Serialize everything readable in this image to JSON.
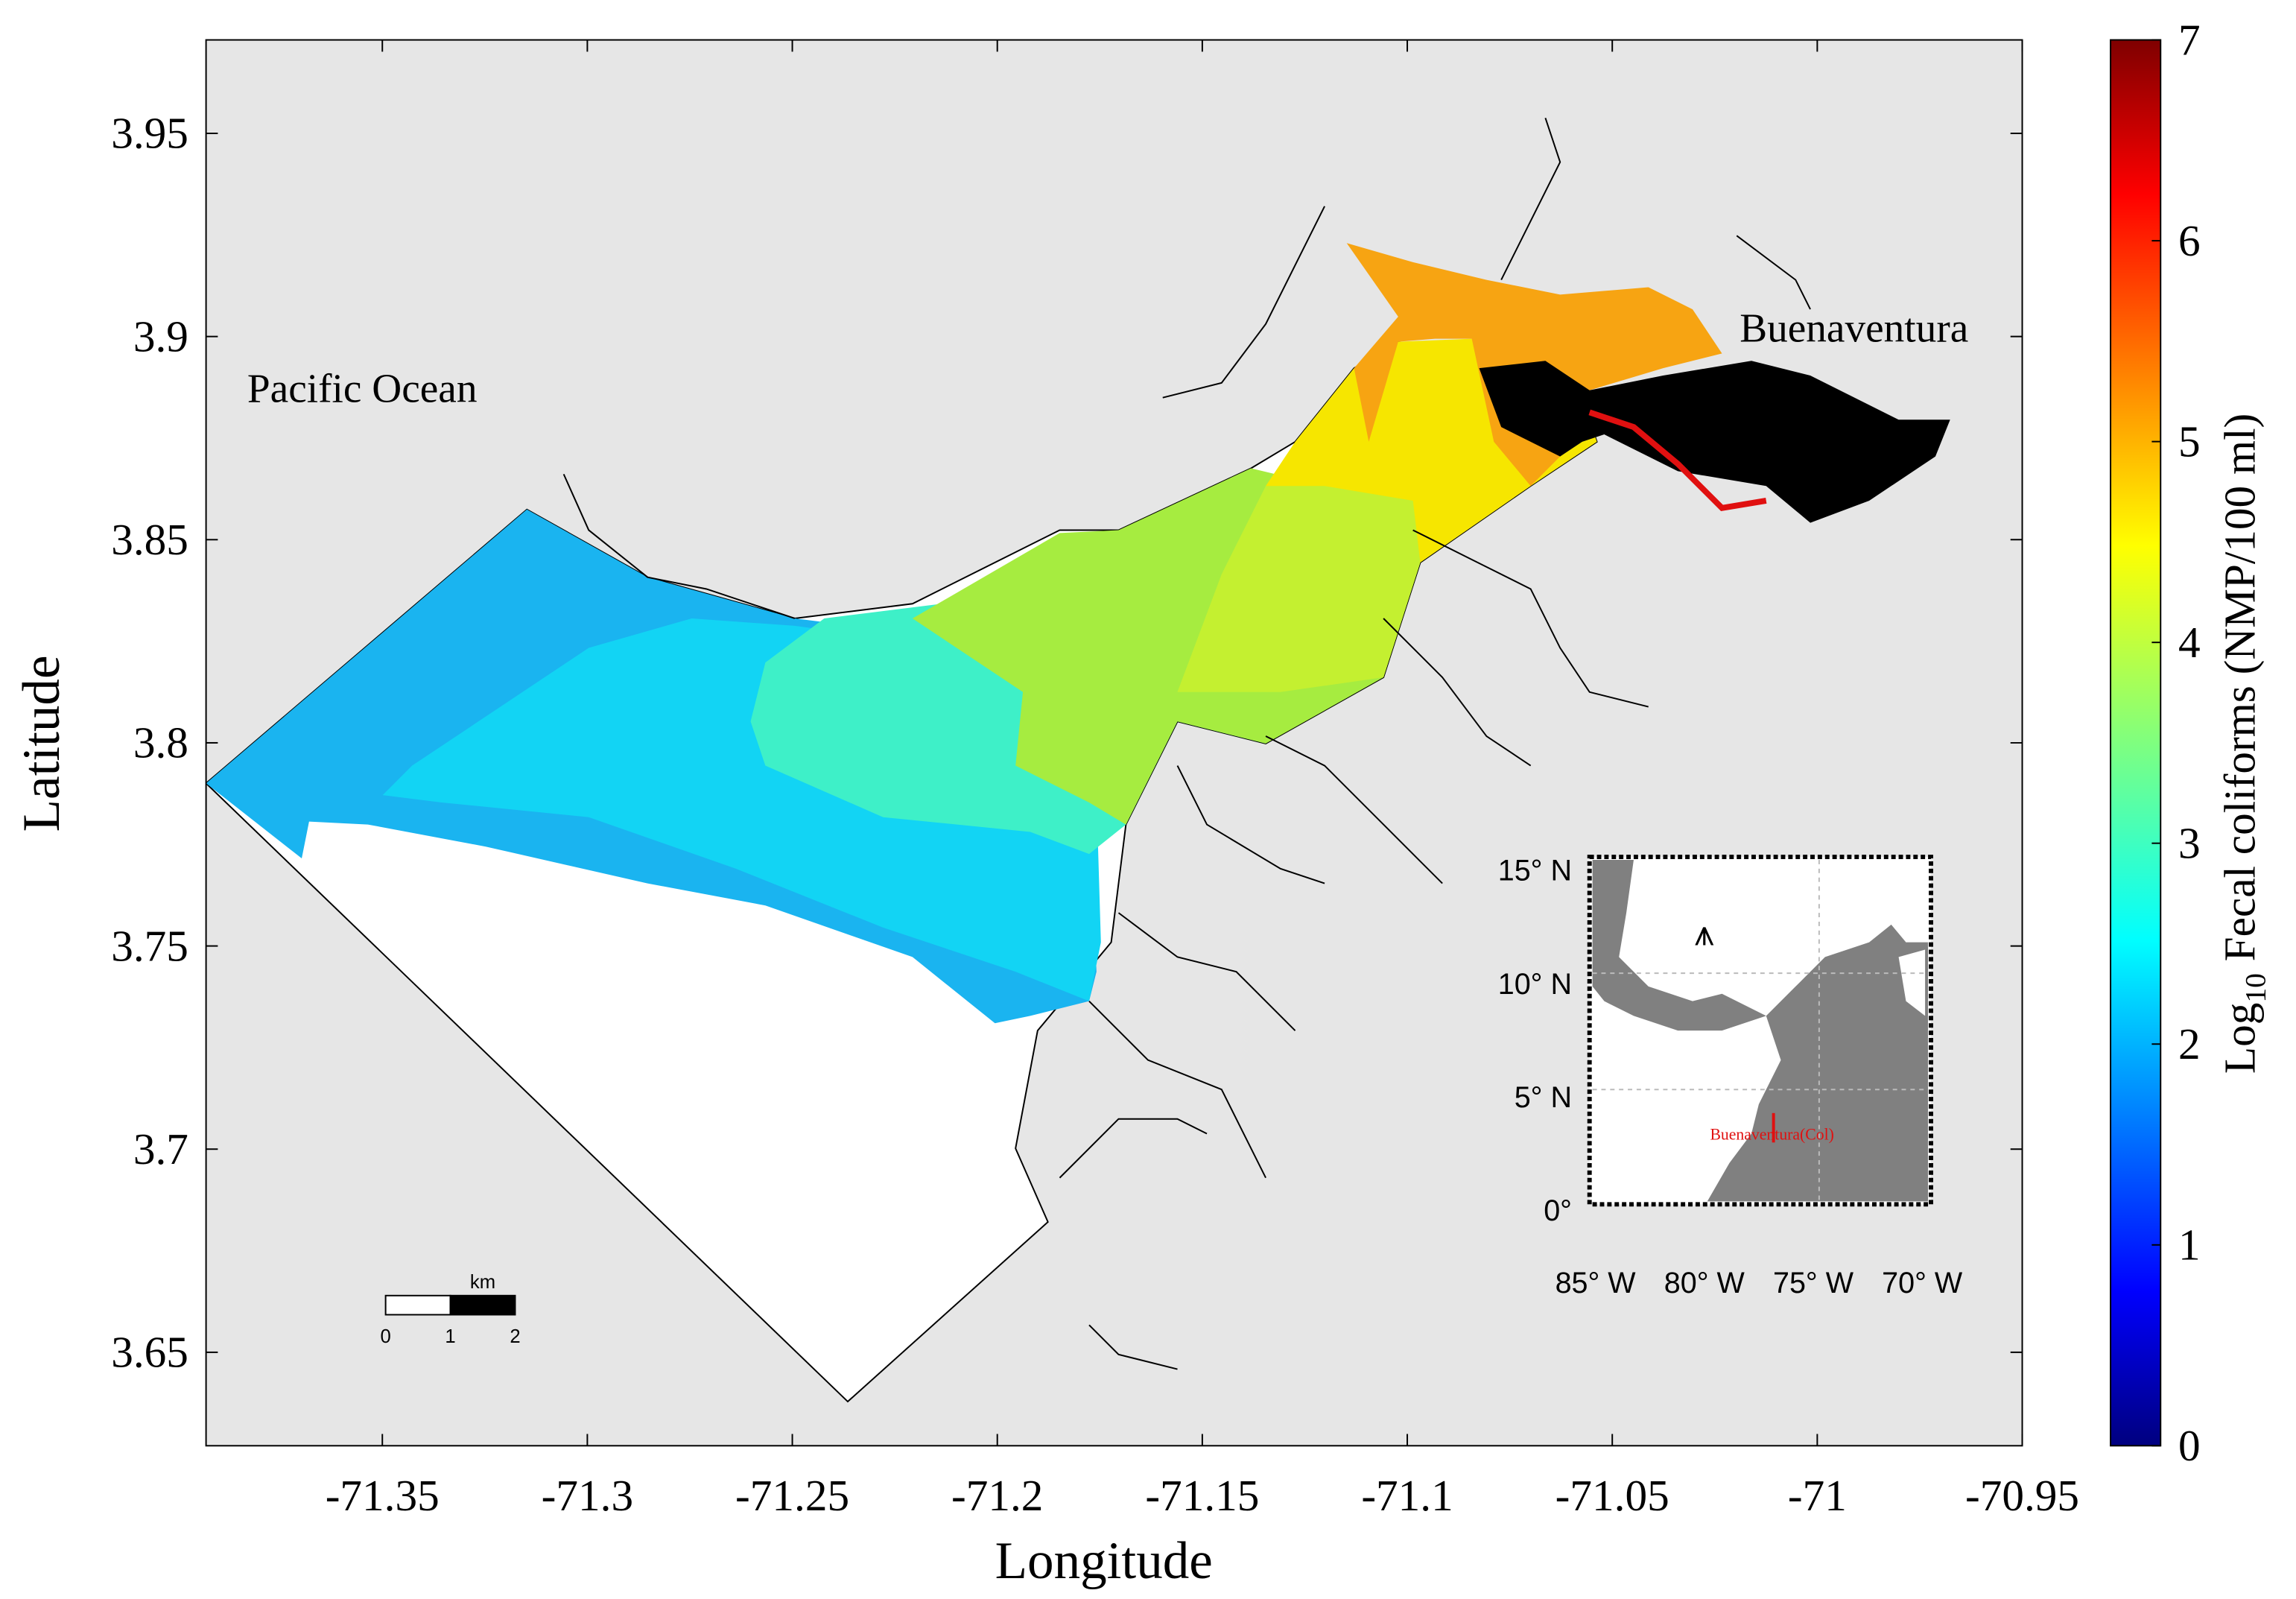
{
  "chart_data": {
    "type": "map",
    "xlabel": "Longitude",
    "ylabel": "Latitude",
    "xlim": [
      -71.393,
      -70.95
    ],
    "ylim": [
      3.627,
      3.973
    ],
    "xticks": [
      -71.35,
      -71.3,
      -71.25,
      -71.2,
      -71.15,
      -71.1,
      -71.05,
      -71,
      -70.95
    ],
    "yticks": [
      3.65,
      3.7,
      3.75,
      3.8,
      3.85,
      3.9,
      3.95
    ],
    "annotations": [
      "Pacific Ocean",
      "Buenaventura"
    ],
    "colorbar": {
      "label": {
        "prefix": "Log",
        "subscript": "10",
        "suffix": "Fecal coliforms (NMP/100 ml)"
      },
      "lim": [
        0,
        7
      ],
      "ticks": [
        0,
        1,
        2,
        3,
        4,
        5,
        6,
        7
      ]
    },
    "scale_bar": {
      "unit": "km",
      "ticks": [
        0,
        1,
        2
      ]
    },
    "inset": {
      "yticks": [
        "15° N",
        "10° N",
        "5° N",
        "0°"
      ],
      "xticks": [
        "85° W",
        "80° W",
        "75° W",
        "70° W"
      ],
      "label": "Buenaventura(Col)"
    }
  }
}
